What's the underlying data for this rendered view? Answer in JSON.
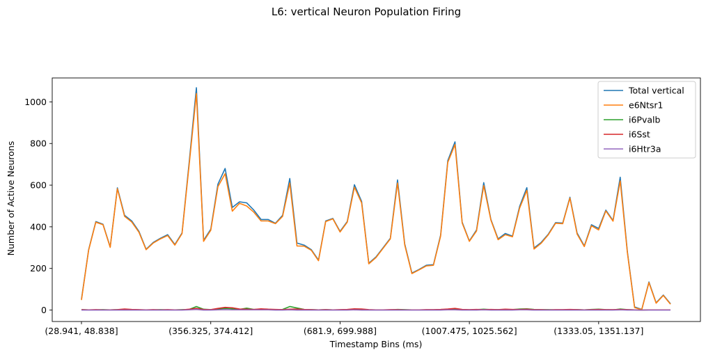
{
  "chart_data": {
    "type": "line",
    "title": "L6: vertical Neuron Population Firing",
    "xlabel": "Timestamp Bins (ms)",
    "ylabel": "Number of Active Neurons",
    "ylim": [
      -55,
      1115
    ],
    "yticks": [
      0,
      200,
      400,
      600,
      800,
      1000
    ],
    "xticks": [
      {
        "index": 0,
        "label": "(28.941, 48.838]"
      },
      {
        "index": 18,
        "label": "(356.325, 374.412]"
      },
      {
        "index": 36,
        "label": "(681.9, 699.988]"
      },
      {
        "index": 54,
        "label": "(1007.475, 1025.562]"
      },
      {
        "index": 72,
        "label": "(1333.05, 1351.137]"
      }
    ],
    "legend_position": "top-right",
    "grid": false,
    "series": [
      {
        "name": "Total vertical",
        "color": "#1f77b4",
        "values": [
          52,
          290,
          425,
          412,
          303,
          587,
          455,
          428,
          378,
          292,
          325,
          345,
          362,
          315,
          370,
          712,
          1068,
          335,
          388,
          605,
          680,
          493,
          520,
          515,
          480,
          435,
          435,
          417,
          455,
          632,
          322,
          312,
          290,
          240,
          428,
          440,
          378,
          425,
          602,
          522,
          225,
          255,
          300,
          345,
          625,
          318,
          178,
          195,
          215,
          218,
          360,
          718,
          808,
          422,
          332,
          385,
          612,
          435,
          342,
          368,
          355,
          498,
          588,
          298,
          325,
          365,
          420,
          418,
          542,
          370,
          308,
          410,
          392,
          480,
          430,
          638,
          280,
          15,
          3,
          135,
          35,
          72,
          30
        ]
      },
      {
        "name": "e6Ntsr1",
        "color": "#ff7f0e",
        "values": [
          48,
          288,
          422,
          410,
          301,
          583,
          450,
          423,
          374,
          290,
          322,
          342,
          358,
          312,
          367,
          700,
          1040,
          330,
          383,
          593,
          655,
          475,
          513,
          500,
          470,
          428,
          428,
          415,
          450,
          610,
          308,
          307,
          287,
          237,
          425,
          438,
          375,
          422,
          590,
          515,
          222,
          252,
          297,
          342,
          610,
          313,
          175,
          193,
          212,
          215,
          355,
          710,
          795,
          418,
          330,
          380,
          598,
          432,
          338,
          362,
          352,
          490,
          575,
          293,
          321,
          362,
          417,
          415,
          538,
          365,
          305,
          405,
          385,
          476,
          427,
          620,
          275,
          12,
          2,
          132,
          33,
          70,
          28
        ]
      },
      {
        "name": "i6Pvalb",
        "color": "#2ca02c",
        "values": [
          2,
          1,
          1,
          2,
          1,
          2,
          3,
          2,
          1,
          1,
          1,
          2,
          1,
          1,
          2,
          3,
          17,
          4,
          2,
          5,
          8,
          6,
          3,
          9,
          3,
          4,
          3,
          2,
          3,
          17,
          10,
          3,
          2,
          1,
          2,
          1,
          1,
          2,
          3,
          4,
          1,
          1,
          1,
          1,
          3,
          2,
          1,
          1,
          1,
          1,
          2,
          3,
          3,
          2,
          1,
          2,
          4,
          2,
          2,
          3,
          2,
          5,
          6,
          3,
          2,
          2,
          1,
          1,
          2,
          2,
          1,
          3,
          4,
          2,
          1,
          5,
          2,
          1,
          0,
          1,
          1,
          1,
          1
        ]
      },
      {
        "name": "i6Sst",
        "color": "#d62728",
        "values": [
          2,
          1,
          2,
          1,
          1,
          2,
          5,
          3,
          2,
          1,
          2,
          1,
          2,
          1,
          1,
          4,
          8,
          3,
          2,
          8,
          13,
          11,
          5,
          4,
          3,
          6,
          4,
          3,
          2,
          4,
          5,
          3,
          2,
          1,
          2,
          1,
          2,
          3,
          6,
          5,
          2,
          1,
          1,
          2,
          2,
          1,
          1,
          1,
          2,
          2,
          3,
          5,
          8,
          3,
          2,
          3,
          2,
          3,
          2,
          4,
          3,
          3,
          4,
          2,
          2,
          1,
          2,
          2,
          3,
          2,
          1,
          2,
          3,
          2,
          2,
          3,
          2,
          1,
          0,
          1,
          1,
          1,
          1
        ]
      },
      {
        "name": "i6Htr3a",
        "color": "#9467bd",
        "values": [
          0,
          0,
          0,
          0,
          0,
          0,
          0,
          0,
          0,
          0,
          0,
          0,
          0,
          0,
          0,
          1,
          3,
          0,
          0,
          1,
          2,
          1,
          1,
          1,
          1,
          1,
          1,
          0,
          0,
          1,
          0,
          0,
          0,
          0,
          0,
          0,
          0,
          0,
          1,
          0,
          0,
          0,
          0,
          0,
          0,
          0,
          0,
          0,
          0,
          0,
          0,
          1,
          1,
          0,
          0,
          0,
          1,
          0,
          0,
          0,
          0,
          1,
          1,
          0,
          0,
          0,
          0,
          0,
          0,
          0,
          0,
          0,
          0,
          0,
          0,
          1,
          0,
          0,
          0,
          0,
          0,
          0,
          0
        ]
      }
    ]
  }
}
